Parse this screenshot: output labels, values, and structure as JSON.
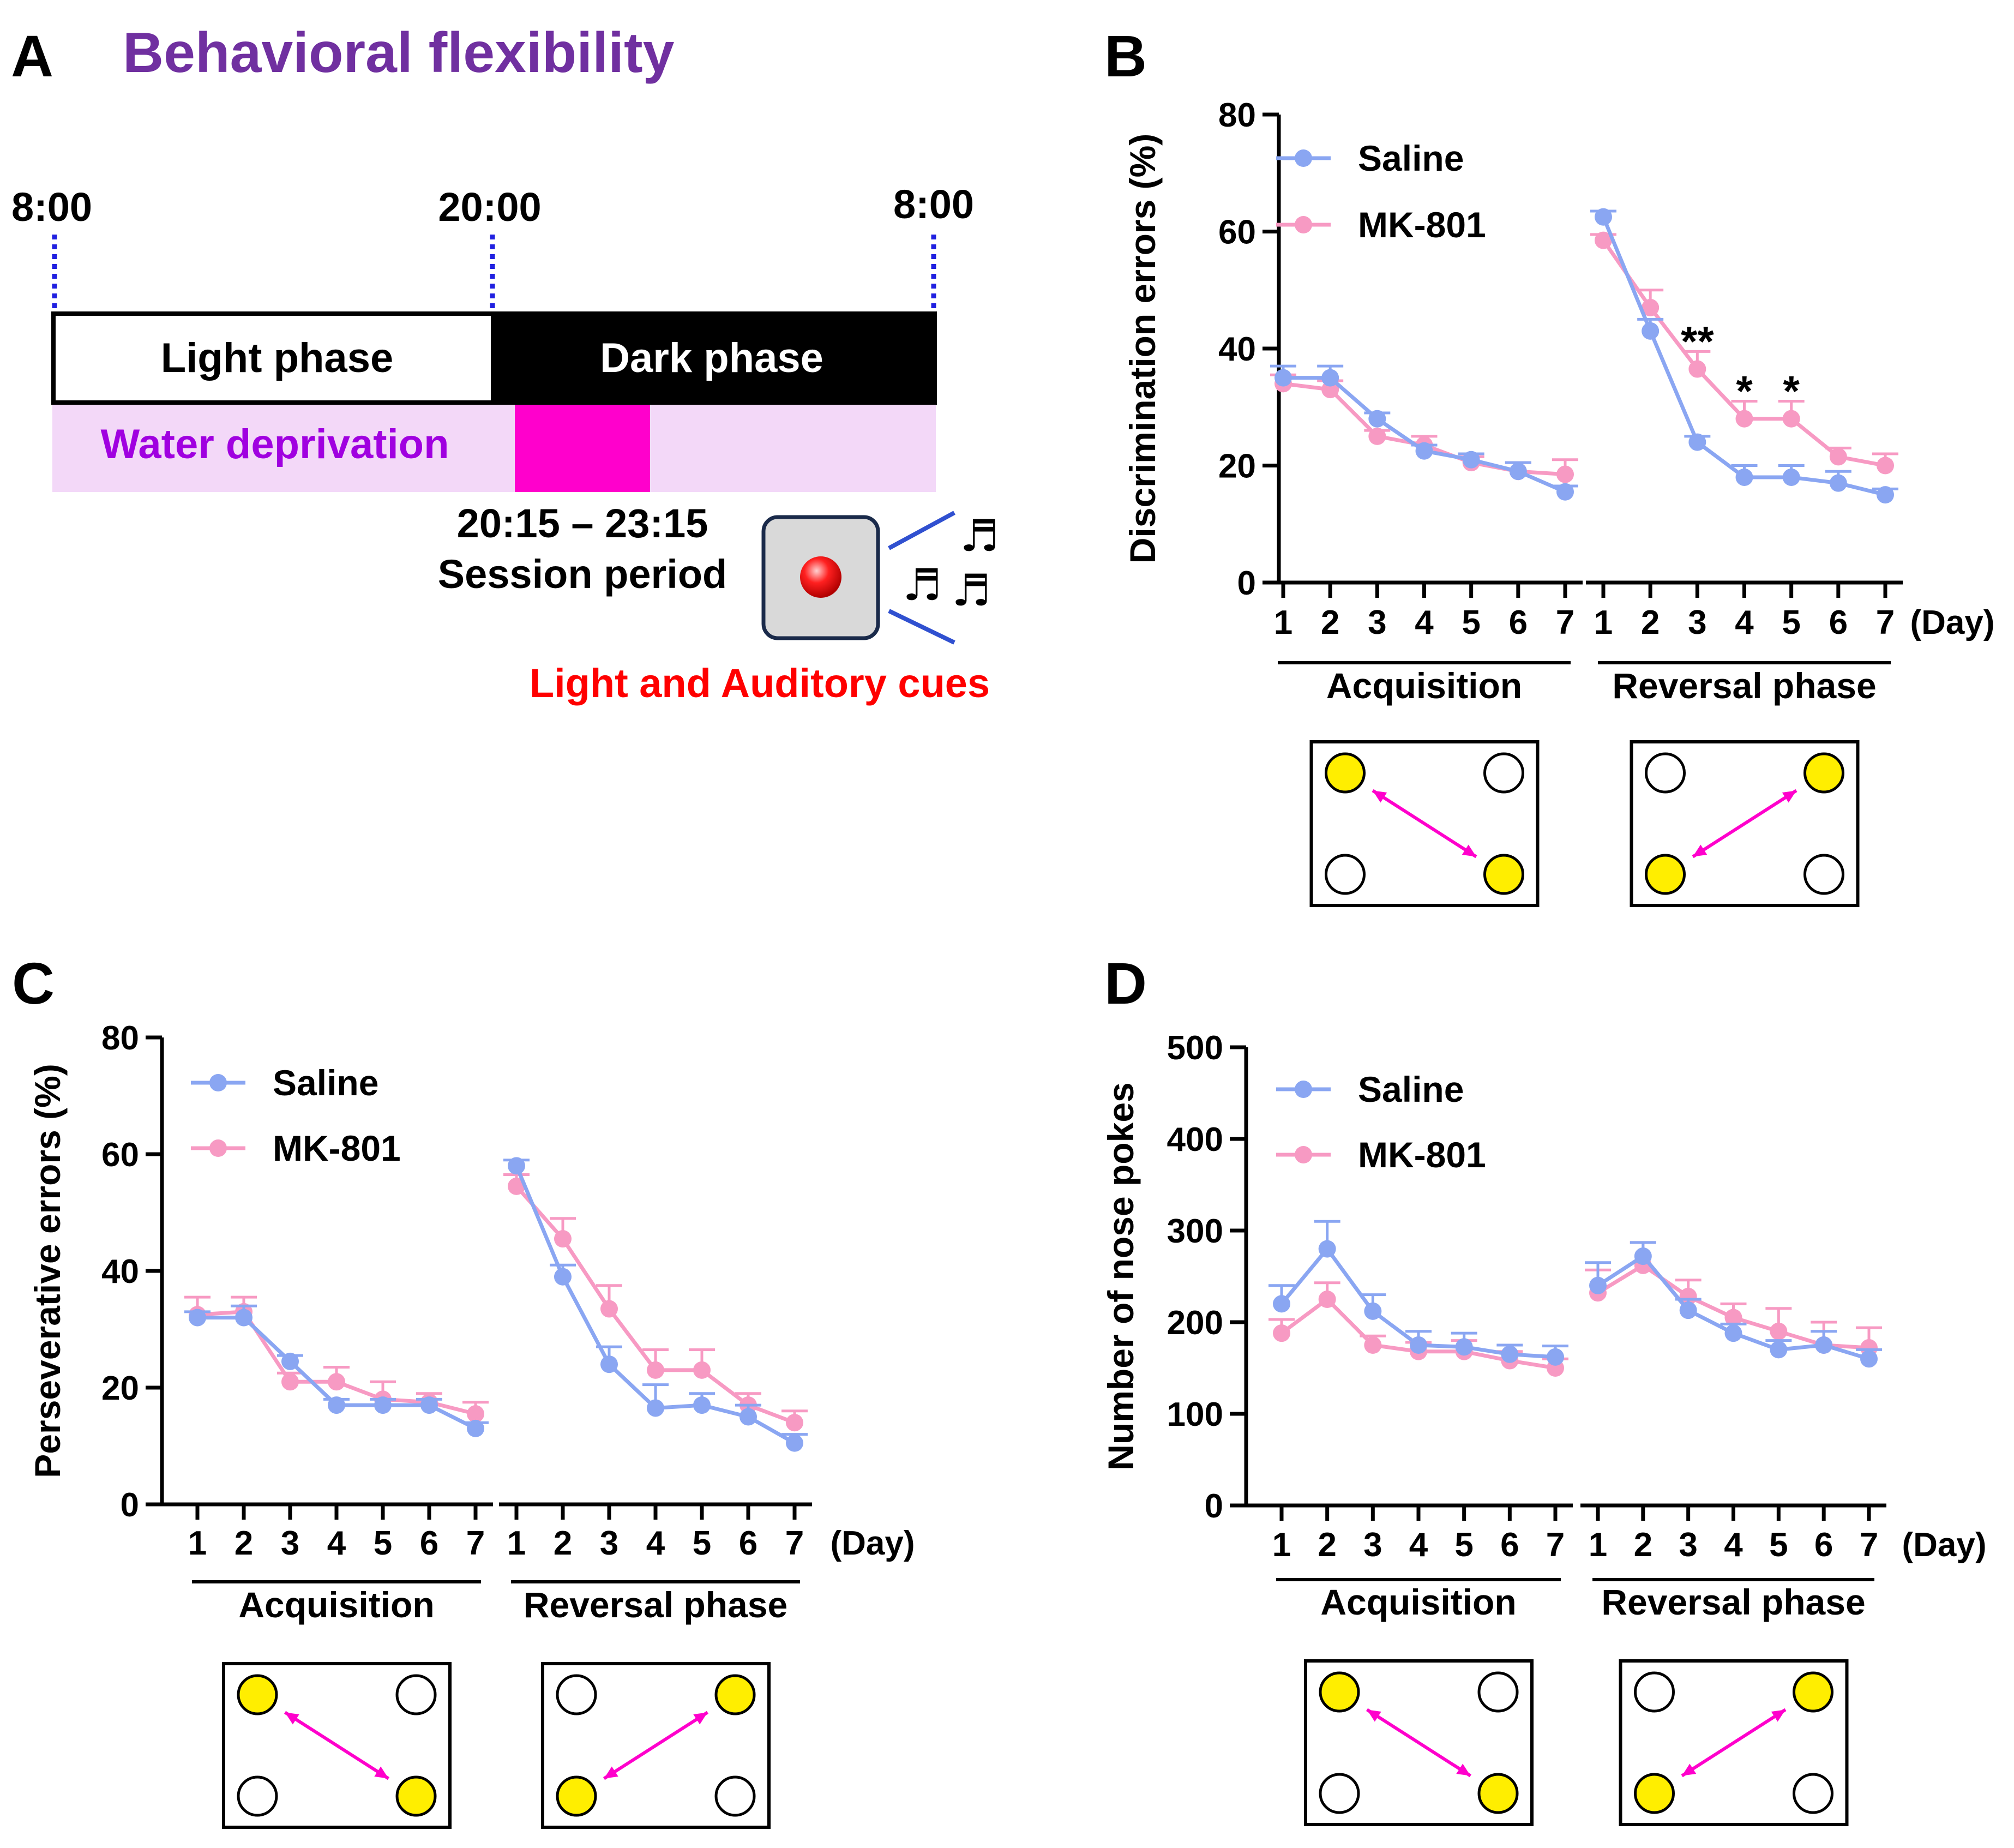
{
  "panels": {
    "A": {
      "letter": "A",
      "title": "Behavioral flexibility",
      "times": [
        "8:00",
        "20:00",
        "8:00"
      ],
      "light_label": "Light phase",
      "dark_label": "Dark phase",
      "water_label": "Water deprivation",
      "session_time": "20:15 – 23:15",
      "session_label": "Session period",
      "cues_label": "Light and Auditory cues",
      "colors": {
        "title": "#7030a0",
        "water_text": "#a000e0",
        "water_bg": "#f3d8f8",
        "session": "#ff00cc",
        "cues_text": "#ff0000",
        "dotted": "#2020e0"
      }
    },
    "B": {
      "letter": "B"
    },
    "C": {
      "letter": "C"
    },
    "D": {
      "letter": "D"
    }
  },
  "shared": {
    "day_unit": "(Day)",
    "acquisition_label": "Acquisition",
    "reversal_label": "Reversal phase",
    "colors": {
      "saline": "#8aa6f2",
      "mk801": "#f79ac3",
      "hole_active": "#ffee00",
      "arrow": "#ff00cc"
    }
  },
  "chart_data": [
    {
      "panel": "B",
      "type": "line",
      "ylabel": "Discrimination errors (%)",
      "ylim": [
        0,
        80
      ],
      "yticks": [
        0,
        20,
        40,
        60,
        80
      ],
      "x": [
        "1",
        "2",
        "3",
        "4",
        "5",
        "6",
        "7"
      ],
      "groups": [
        "Acquisition",
        "Reversal phase"
      ],
      "legend": [
        "Saline",
        "MK-801"
      ],
      "series": [
        {
          "name": "Saline",
          "acquisition": [
            35,
            35,
            28,
            22.5,
            21,
            19,
            15.5
          ],
          "acquisition_err": [
            2,
            2,
            1,
            1,
            1,
            1.5,
            1
          ],
          "reversal": [
            62.5,
            43,
            24,
            18,
            18,
            17,
            15
          ],
          "reversal_err": [
            1,
            2,
            1,
            2,
            2,
            2,
            1
          ]
        },
        {
          "name": "MK-801",
          "acquisition": [
            34,
            33,
            25,
            23.5,
            20.5,
            19,
            18.5
          ],
          "acquisition_err": [
            1.5,
            1.5,
            1,
            1.5,
            1,
            1.5,
            2.5
          ],
          "reversal": [
            58.5,
            47,
            36.5,
            28,
            28,
            21.5,
            20
          ],
          "reversal_err": [
            1,
            3,
            3,
            3,
            3,
            1.5,
            2
          ]
        }
      ],
      "annotations": [
        {
          "group": "Reversal phase",
          "day": "3",
          "text": "**"
        },
        {
          "group": "Reversal phase",
          "day": "4",
          "text": "*"
        },
        {
          "group": "Reversal phase",
          "day": "5",
          "text": "*"
        }
      ]
    },
    {
      "panel": "C",
      "type": "line",
      "ylabel": "Perseverative errors (%)",
      "ylim": [
        0,
        80
      ],
      "yticks": [
        0,
        20,
        40,
        60,
        80
      ],
      "x": [
        "1",
        "2",
        "3",
        "4",
        "5",
        "6",
        "7"
      ],
      "groups": [
        "Acquisition",
        "Reversal phase"
      ],
      "legend": [
        "Saline",
        "MK-801"
      ],
      "series": [
        {
          "name": "Saline",
          "acquisition": [
            32,
            32,
            24.5,
            17,
            17,
            17,
            13
          ],
          "acquisition_err": [
            1,
            2,
            1,
            1,
            1,
            1,
            1
          ],
          "reversal": [
            58,
            39,
            24,
            16.5,
            17,
            15,
            10.5
          ],
          "reversal_err": [
            1,
            2,
            3,
            4,
            2,
            2,
            1.5
          ]
        },
        {
          "name": "MK-801",
          "acquisition": [
            32.5,
            33,
            21,
            21,
            18,
            17.5,
            15.5
          ],
          "acquisition_err": [
            3,
            2.5,
            1.5,
            2.5,
            3,
            1.5,
            2
          ],
          "reversal": [
            54.5,
            45.5,
            33.5,
            23,
            23,
            17,
            14
          ],
          "reversal_err": [
            2,
            3.5,
            4,
            3.5,
            3.5,
            2,
            2
          ]
        }
      ]
    },
    {
      "panel": "D",
      "type": "line",
      "ylabel": "Number of nose pokes",
      "ylim": [
        0,
        500
      ],
      "yticks": [
        0,
        100,
        200,
        300,
        400,
        500
      ],
      "x": [
        "1",
        "2",
        "3",
        "4",
        "5",
        "6",
        "7"
      ],
      "groups": [
        "Acquisition",
        "Reversal phase"
      ],
      "legend": [
        "Saline",
        "MK-801"
      ],
      "series": [
        {
          "name": "Saline",
          "acquisition": [
            220,
            280,
            212,
            175,
            173,
            165,
            162
          ],
          "acquisition_err": [
            20,
            30,
            18,
            15,
            15,
            10,
            12
          ],
          "reversal": [
            240,
            272,
            213,
            188,
            170,
            175,
            160
          ],
          "reversal_err": [
            25,
            15,
            12,
            10,
            10,
            15,
            10
          ]
        },
        {
          "name": "MK-801",
          "acquisition": [
            188,
            225,
            175,
            168,
            168,
            158,
            150
          ],
          "acquisition_err": [
            15,
            18,
            10,
            10,
            12,
            10,
            10
          ],
          "reversal": [
            232,
            262,
            228,
            205,
            190,
            175,
            172
          ],
          "reversal_err": [
            25,
            25,
            18,
            15,
            25,
            25,
            22
          ]
        }
      ]
    }
  ]
}
